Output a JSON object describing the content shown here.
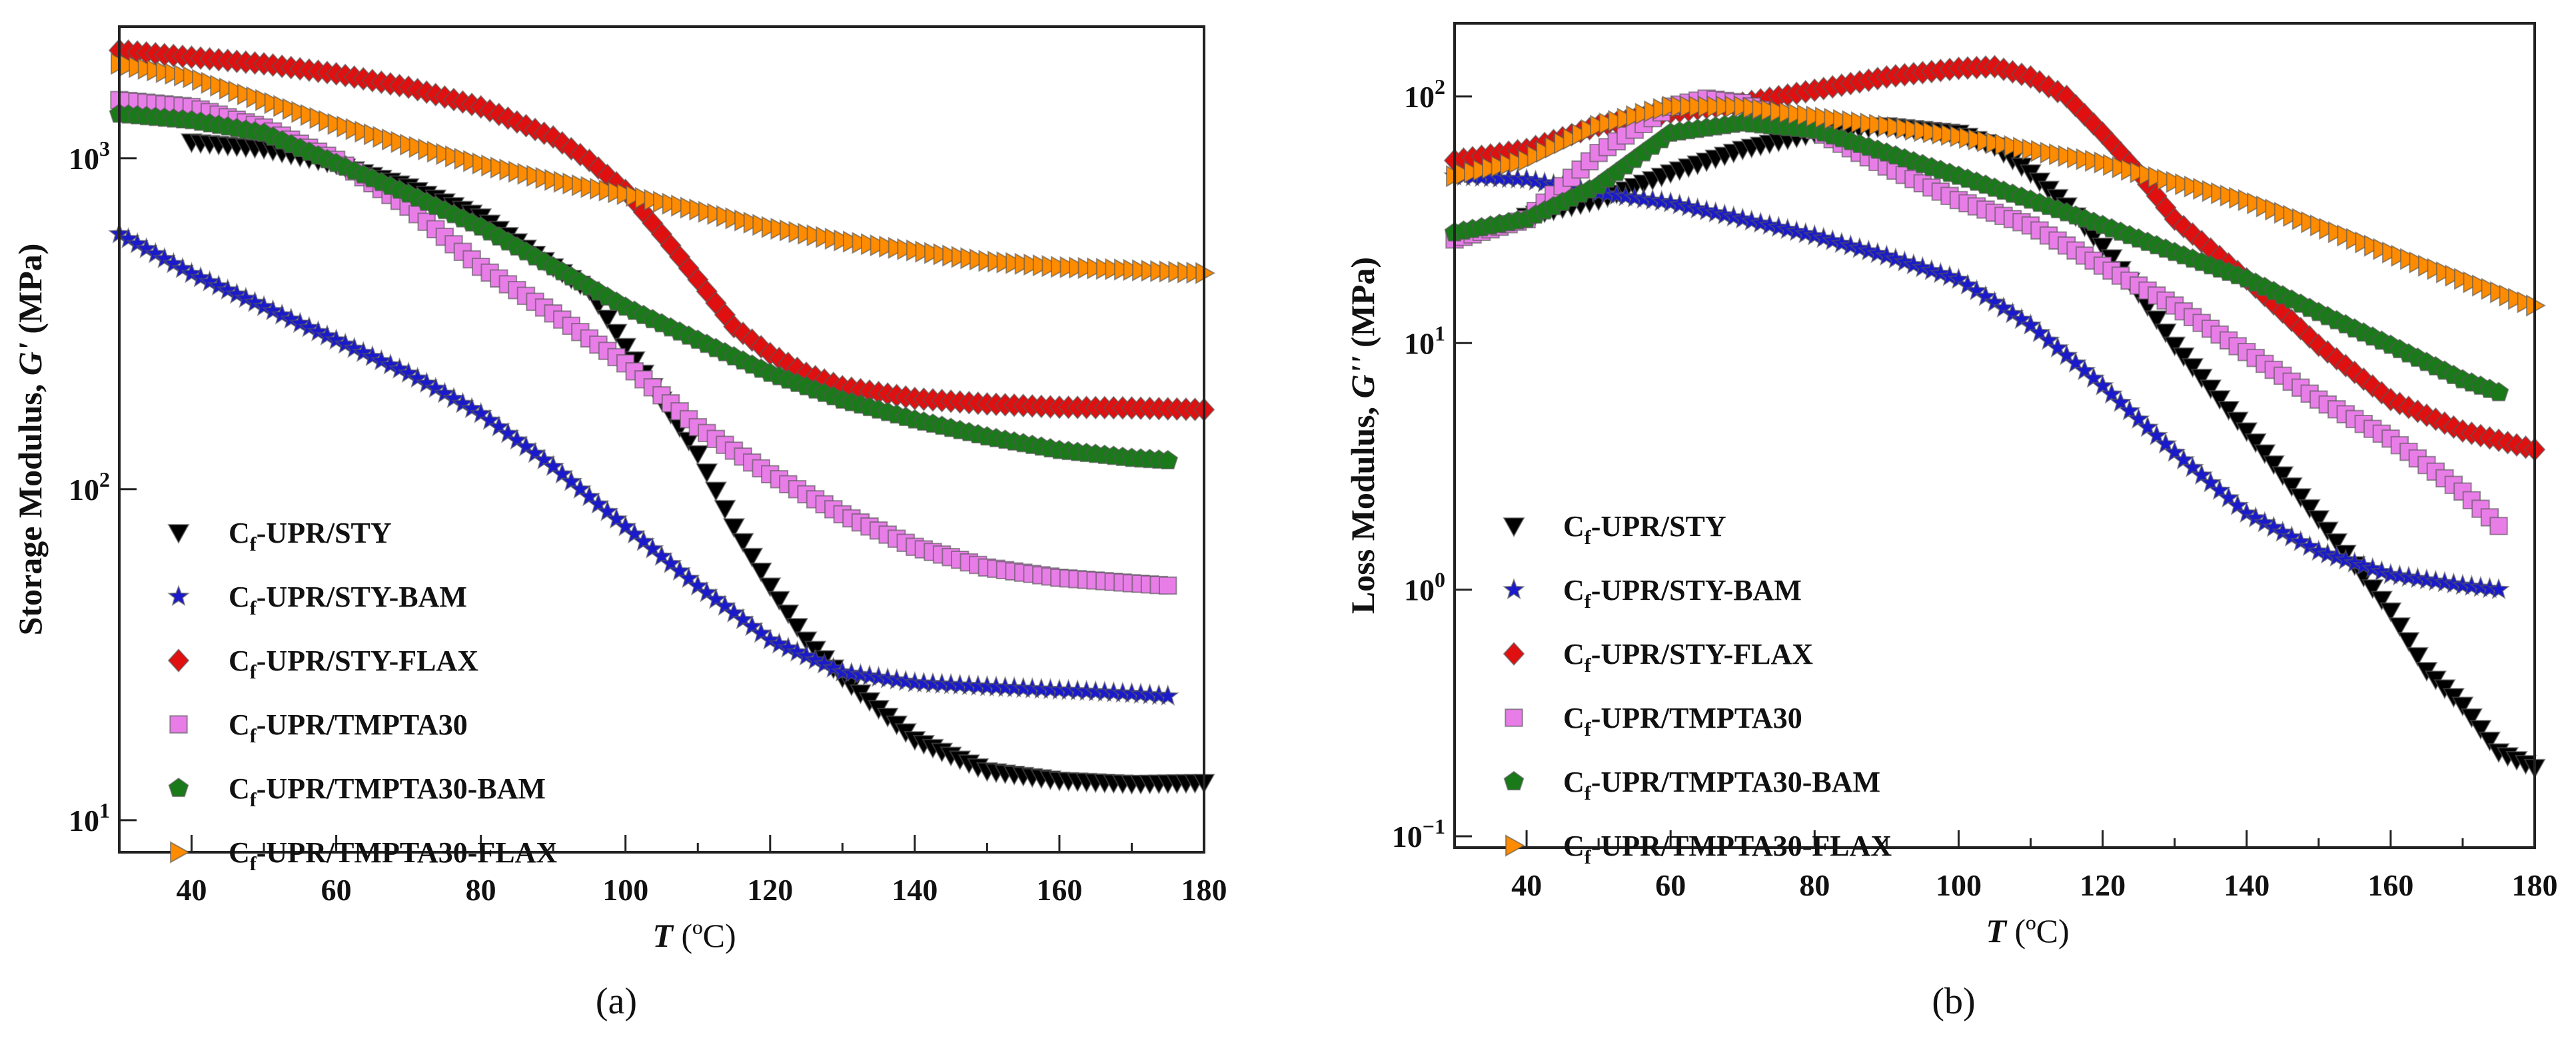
{
  "chart_data": [
    {
      "type": "scatter",
      "panel_label": "(a)",
      "xlabel": "T (ºC)",
      "ylabel": "Storage Modulus, G' (MPa)",
      "xlim": [
        30,
        180
      ],
      "ylim": [
        8,
        2500
      ],
      "yscale": "log",
      "xticks": [
        40,
        60,
        80,
        100,
        120,
        140,
        160,
        180
      ],
      "yticks_exponents": [
        1,
        2,
        3
      ],
      "legend_position": "lower-left",
      "series": [
        {
          "name": "Cf-UPR/STY",
          "marker": "triangle-down",
          "color": "#000000",
          "x": [
            40,
            50,
            60,
            70,
            80,
            90,
            95,
            100,
            105,
            110,
            115,
            120,
            125,
            130,
            140,
            150,
            160,
            170,
            180
          ],
          "y": [
            1120,
            1070,
            960,
            820,
            665,
            470,
            400,
            270,
            186,
            128,
            77,
            51,
            35,
            27,
            17.5,
            14.1,
            13.2,
            12.9,
            13
          ]
        },
        {
          "name": "Cf-UPR/STY-BAM",
          "marker": "star",
          "color": "#1a1acc",
          "x": [
            30,
            40,
            50,
            60,
            70,
            80,
            90,
            100,
            110,
            120,
            130,
            140,
            150,
            160,
            170,
            175
          ],
          "y": [
            591,
            448,
            356,
            282,
            224,
            169,
            117,
            77,
            51,
            35,
            28,
            26,
            25.3,
            24.7,
            24.1,
            23.7
          ]
        },
        {
          "name": "Cf-UPR/STY-FLAX",
          "marker": "diamond",
          "color": "#e01010",
          "x": [
            30,
            40,
            50,
            60,
            70,
            80,
            90,
            95,
            100,
            105,
            110,
            115,
            120,
            125,
            130,
            140,
            150,
            160,
            170,
            180
          ],
          "y": [
            2120,
            2020,
            1930,
            1800,
            1640,
            1430,
            1160,
            985,
            800,
            590,
            430,
            310,
            257,
            224,
            204,
            188,
            181,
            177,
            176,
            174
          ]
        },
        {
          "name": "Cf-UPR/TMPTA30",
          "marker": "square",
          "color": "#e87de8",
          "x": [
            30,
            40,
            50,
            60,
            70,
            80,
            90,
            100,
            110,
            120,
            130,
            140,
            150,
            160,
            170,
            176
          ],
          "y": [
            1500,
            1430,
            1240,
            990,
            714,
            470,
            340,
            240,
            154,
            111,
            84,
            67,
            58,
            54,
            52,
            51
          ]
        },
        {
          "name": "Cf-UPR/TMPTA30-BAM",
          "marker": "pentagon",
          "color": "#1a7a1a",
          "x": [
            30,
            40,
            50,
            60,
            70,
            80,
            90,
            100,
            110,
            120,
            130,
            140,
            150,
            160,
            170,
            175
          ],
          "y": [
            1360,
            1300,
            1190,
            965,
            780,
            620,
            470,
            355,
            282,
            224,
            186,
            162,
            144,
            131,
            124,
            122
          ]
        },
        {
          "name": "Cf-UPR/TMPTA30-FLAX",
          "marker": "triangle-right",
          "color": "#ff8c00",
          "x": [
            30,
            40,
            50,
            60,
            70,
            80,
            90,
            100,
            110,
            120,
            130,
            140,
            150,
            160,
            170,
            180
          ],
          "y": [
            1930,
            1760,
            1500,
            1270,
            1100,
            965,
            860,
            780,
            700,
            620,
            565,
            527,
            490,
            470,
            460,
            450
          ]
        }
      ]
    },
    {
      "type": "scatter",
      "panel_label": "(b)",
      "xlabel": "T (ºC)",
      "ylabel": "Loss Modulus, G'' (MPa)",
      "xlim": [
        30,
        180
      ],
      "ylim": [
        0.09,
        198
      ],
      "yscale": "log",
      "xticks": [
        40,
        60,
        80,
        100,
        120,
        140,
        160,
        180
      ],
      "yticks_exponents": [
        -1,
        0,
        1,
        2
      ],
      "legend_position": "lower-left",
      "series": [
        {
          "name": "Cf-UPR/STY",
          "marker": "triangle-down",
          "color": "#000000",
          "x": [
            40,
            50,
            60,
            70,
            80,
            90,
            100,
            105,
            110,
            115,
            120,
            125,
            130,
            140,
            150,
            160,
            165,
            170,
            175,
            180
          ],
          "y": [
            32.7,
            38,
            49,
            61,
            71,
            76,
            71,
            63,
            49,
            36,
            24.7,
            16,
            9.8,
            4.4,
            1.94,
            0.82,
            0.47,
            0.34,
            0.22,
            0.19
          ]
        },
        {
          "name": "Cf-UPR/STY-BAM",
          "marker": "star",
          "color": "#1a1acc",
          "x": [
            30,
            40,
            50,
            60,
            70,
            80,
            90,
            100,
            110,
            120,
            130,
            140,
            150,
            160,
            170,
            175
          ],
          "y": [
            47.5,
            46,
            40.6,
            37,
            31.8,
            27.2,
            22.5,
            18.1,
            11.8,
            6.7,
            3.6,
            2.04,
            1.43,
            1.15,
            1.04,
            1.0
          ]
        },
        {
          "name": "Cf-UPR/STY-FLAX",
          "marker": "diamond",
          "color": "#e01010",
          "x": [
            30,
            40,
            50,
            60,
            70,
            80,
            90,
            100,
            105,
            110,
            115,
            120,
            125,
            130,
            140,
            150,
            160,
            170,
            180
          ],
          "y": [
            55,
            61,
            76,
            86,
            94,
            106,
            120,
            130,
            132,
            120,
            100,
            71,
            49,
            31.8,
            18.2,
            9.8,
            5.9,
            4.4,
            3.7
          ]
        },
        {
          "name": "Cf-UPR/TMPTA30",
          "marker": "square",
          "color": "#e87de8",
          "x": [
            30,
            40,
            50,
            60,
            65,
            70,
            80,
            90,
            100,
            110,
            120,
            130,
            140,
            150,
            160,
            170,
            176
          ],
          "y": [
            26.3,
            31.8,
            59,
            91,
            98,
            94,
            73,
            52,
            38,
            30,
            20.6,
            14.2,
            9.2,
            5.9,
            4.1,
            2.5,
            1.7
          ]
        },
        {
          "name": "Cf-UPR/TMPTA30-BAM",
          "marker": "pentagon",
          "color": "#1a7a1a",
          "x": [
            30,
            40,
            50,
            60,
            70,
            80,
            90,
            100,
            110,
            120,
            130,
            140,
            150,
            160,
            170,
            175
          ],
          "y": [
            28,
            31.8,
            43.5,
            71,
            78,
            73,
            59,
            47.5,
            38,
            30,
            23.3,
            18.2,
            13.3,
            9.8,
            7.1,
            6.3
          ]
        },
        {
          "name": "Cf-UPR/TMPTA30-FLAX",
          "marker": "triangle-right",
          "color": "#ff8c00",
          "x": [
            30,
            40,
            50,
            60,
            70,
            80,
            90,
            100,
            110,
            120,
            130,
            140,
            150,
            160,
            170,
            180
          ],
          "y": [
            47.5,
            55,
            76,
            91,
            91,
            83,
            76,
            69,
            61,
            54,
            45,
            38,
            30,
            23.3,
            18.2,
            14.2
          ]
        }
      ]
    }
  ]
}
